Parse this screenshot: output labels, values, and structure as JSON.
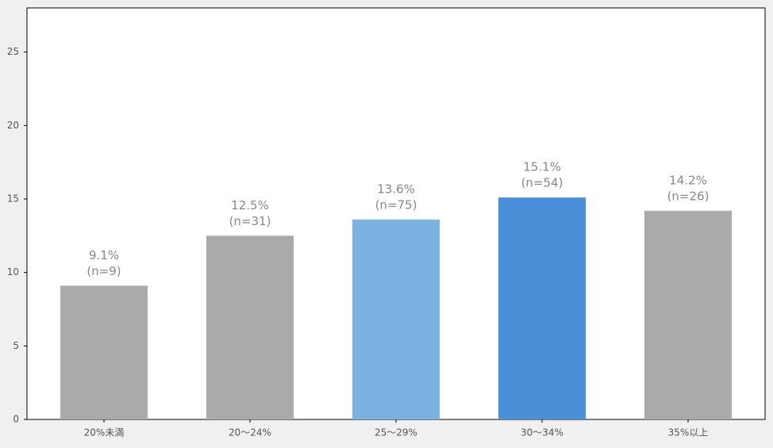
{
  "chart_data": {
    "type": "bar",
    "categories": [
      "20%未満",
      "20〜24%",
      "25〜29%",
      "30〜34%",
      "35%以上"
    ],
    "values": [
      9.1,
      12.5,
      13.6,
      15.1,
      14.2
    ],
    "value_labels": [
      "9.1%",
      "12.5%",
      "13.6%",
      "15.1%",
      "14.2%"
    ],
    "sample_labels": [
      "(n=9)",
      "(n=31)",
      "(n=75)",
      "(n=54)",
      "(n=26)"
    ],
    "colors": [
      "#aaaaaa",
      "#aaaaaa",
      "#7ab3e2",
      "#4a90d9",
      "#aaaaaa"
    ],
    "ylim": [
      0,
      28
    ],
    "yticks": [
      0,
      5,
      10,
      15,
      20,
      25
    ],
    "grid": false
  }
}
